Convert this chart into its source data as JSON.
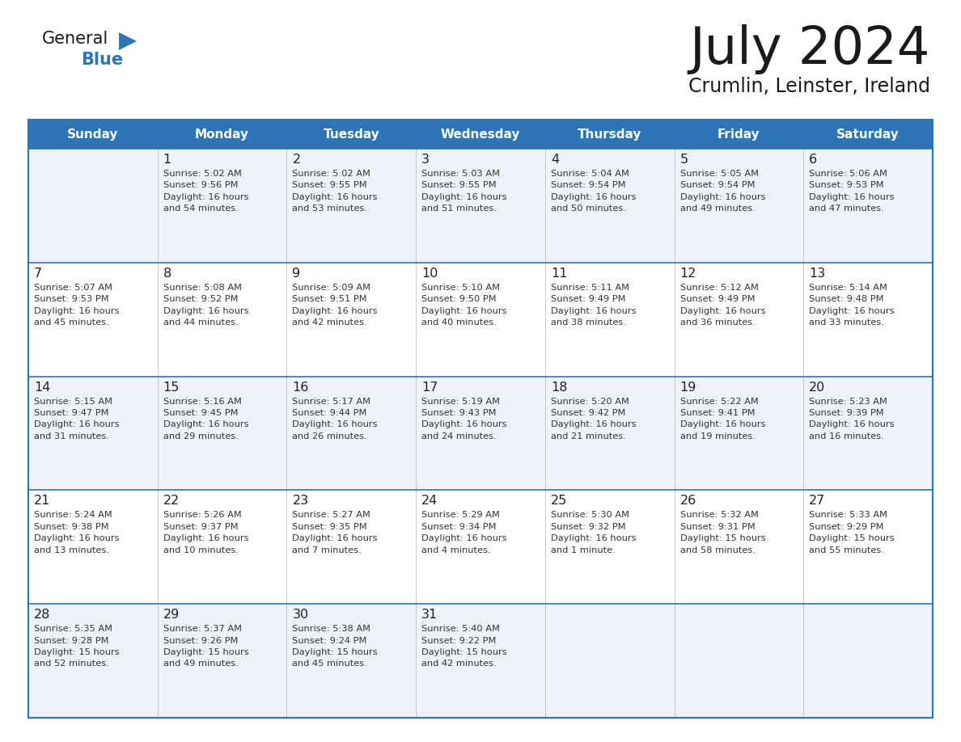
{
  "title": "July 2024",
  "subtitle": "Crumlin, Leinster, Ireland",
  "header_bg": "#2E75B6",
  "header_text": "#FFFFFF",
  "day_headers": [
    "Sunday",
    "Monday",
    "Tuesday",
    "Wednesday",
    "Thursday",
    "Friday",
    "Saturday"
  ],
  "cell_border_color": "#2E75B6",
  "row_bg_light": "#EEF3F9",
  "row_bg_white": "#FFFFFF",
  "day_num_color": "#222222",
  "cell_text_color": "#333333",
  "logo_general_color": "#1a1a1a",
  "logo_blue_color": "#2E75B6",
  "logo_triangle_color": "#2E75B6",
  "title_color": "#1a1a1a",
  "subtitle_color": "#1a1a1a",
  "weeks": [
    [
      {
        "day": "",
        "text": ""
      },
      {
        "day": "1",
        "text": "Sunrise: 5:02 AM\nSunset: 9:56 PM\nDaylight: 16 hours\nand 54 minutes."
      },
      {
        "day": "2",
        "text": "Sunrise: 5:02 AM\nSunset: 9:55 PM\nDaylight: 16 hours\nand 53 minutes."
      },
      {
        "day": "3",
        "text": "Sunrise: 5:03 AM\nSunset: 9:55 PM\nDaylight: 16 hours\nand 51 minutes."
      },
      {
        "day": "4",
        "text": "Sunrise: 5:04 AM\nSunset: 9:54 PM\nDaylight: 16 hours\nand 50 minutes."
      },
      {
        "day": "5",
        "text": "Sunrise: 5:05 AM\nSunset: 9:54 PM\nDaylight: 16 hours\nand 49 minutes."
      },
      {
        "day": "6",
        "text": "Sunrise: 5:06 AM\nSunset: 9:53 PM\nDaylight: 16 hours\nand 47 minutes."
      }
    ],
    [
      {
        "day": "7",
        "text": "Sunrise: 5:07 AM\nSunset: 9:53 PM\nDaylight: 16 hours\nand 45 minutes."
      },
      {
        "day": "8",
        "text": "Sunrise: 5:08 AM\nSunset: 9:52 PM\nDaylight: 16 hours\nand 44 minutes."
      },
      {
        "day": "9",
        "text": "Sunrise: 5:09 AM\nSunset: 9:51 PM\nDaylight: 16 hours\nand 42 minutes."
      },
      {
        "day": "10",
        "text": "Sunrise: 5:10 AM\nSunset: 9:50 PM\nDaylight: 16 hours\nand 40 minutes."
      },
      {
        "day": "11",
        "text": "Sunrise: 5:11 AM\nSunset: 9:49 PM\nDaylight: 16 hours\nand 38 minutes."
      },
      {
        "day": "12",
        "text": "Sunrise: 5:12 AM\nSunset: 9:49 PM\nDaylight: 16 hours\nand 36 minutes."
      },
      {
        "day": "13",
        "text": "Sunrise: 5:14 AM\nSunset: 9:48 PM\nDaylight: 16 hours\nand 33 minutes."
      }
    ],
    [
      {
        "day": "14",
        "text": "Sunrise: 5:15 AM\nSunset: 9:47 PM\nDaylight: 16 hours\nand 31 minutes."
      },
      {
        "day": "15",
        "text": "Sunrise: 5:16 AM\nSunset: 9:45 PM\nDaylight: 16 hours\nand 29 minutes."
      },
      {
        "day": "16",
        "text": "Sunrise: 5:17 AM\nSunset: 9:44 PM\nDaylight: 16 hours\nand 26 minutes."
      },
      {
        "day": "17",
        "text": "Sunrise: 5:19 AM\nSunset: 9:43 PM\nDaylight: 16 hours\nand 24 minutes."
      },
      {
        "day": "18",
        "text": "Sunrise: 5:20 AM\nSunset: 9:42 PM\nDaylight: 16 hours\nand 21 minutes."
      },
      {
        "day": "19",
        "text": "Sunrise: 5:22 AM\nSunset: 9:41 PM\nDaylight: 16 hours\nand 19 minutes."
      },
      {
        "day": "20",
        "text": "Sunrise: 5:23 AM\nSunset: 9:39 PM\nDaylight: 16 hours\nand 16 minutes."
      }
    ],
    [
      {
        "day": "21",
        "text": "Sunrise: 5:24 AM\nSunset: 9:38 PM\nDaylight: 16 hours\nand 13 minutes."
      },
      {
        "day": "22",
        "text": "Sunrise: 5:26 AM\nSunset: 9:37 PM\nDaylight: 16 hours\nand 10 minutes."
      },
      {
        "day": "23",
        "text": "Sunrise: 5:27 AM\nSunset: 9:35 PM\nDaylight: 16 hours\nand 7 minutes."
      },
      {
        "day": "24",
        "text": "Sunrise: 5:29 AM\nSunset: 9:34 PM\nDaylight: 16 hours\nand 4 minutes."
      },
      {
        "day": "25",
        "text": "Sunrise: 5:30 AM\nSunset: 9:32 PM\nDaylight: 16 hours\nand 1 minute."
      },
      {
        "day": "26",
        "text": "Sunrise: 5:32 AM\nSunset: 9:31 PM\nDaylight: 15 hours\nand 58 minutes."
      },
      {
        "day": "27",
        "text": "Sunrise: 5:33 AM\nSunset: 9:29 PM\nDaylight: 15 hours\nand 55 minutes."
      }
    ],
    [
      {
        "day": "28",
        "text": "Sunrise: 5:35 AM\nSunset: 9:28 PM\nDaylight: 15 hours\nand 52 minutes."
      },
      {
        "day": "29",
        "text": "Sunrise: 5:37 AM\nSunset: 9:26 PM\nDaylight: 15 hours\nand 49 minutes."
      },
      {
        "day": "30",
        "text": "Sunrise: 5:38 AM\nSunset: 9:24 PM\nDaylight: 15 hours\nand 45 minutes."
      },
      {
        "day": "31",
        "text": "Sunrise: 5:40 AM\nSunset: 9:22 PM\nDaylight: 15 hours\nand 42 minutes."
      },
      {
        "day": "",
        "text": ""
      },
      {
        "day": "",
        "text": ""
      },
      {
        "day": "",
        "text": ""
      }
    ]
  ]
}
